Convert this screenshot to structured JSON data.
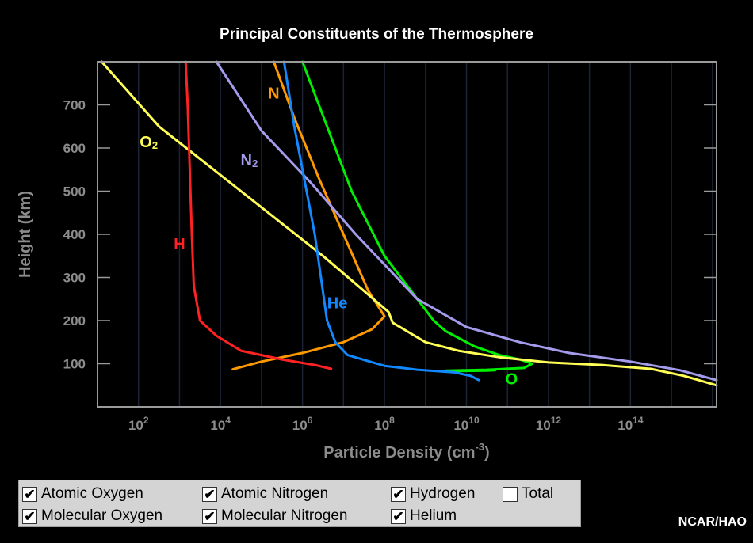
{
  "title": "Principal Constituents of the Thermosphere",
  "credit": "NCAR/HAO",
  "legend": [
    {
      "label": "Atomic Oxygen",
      "checked": true
    },
    {
      "label": "Atomic Nitrogen",
      "checked": true
    },
    {
      "label": "Hydrogen",
      "checked": true
    },
    {
      "label": "Total",
      "checked": false
    },
    {
      "label": "Molecular Oxygen",
      "checked": true
    },
    {
      "label": "Molecular Nitrogen",
      "checked": true
    },
    {
      "label": "Helium",
      "checked": true
    }
  ],
  "chart_data": {
    "type": "line",
    "title": "Principal Constituents of the Thermosphere",
    "xlabel": "Particle Density (cm-3)",
    "ylabel": "Height (km)",
    "x_scale": "log10",
    "xlim_log10": [
      1,
      16.1
    ],
    "ylim": [
      0,
      800
    ],
    "x_ticks": [
      {
        "base": "10",
        "exp": "2"
      },
      {
        "base": "10",
        "exp": "4"
      },
      {
        "base": "10",
        "exp": "6"
      },
      {
        "base": "10",
        "exp": "8"
      },
      {
        "base": "10",
        "exp": "10"
      },
      {
        "base": "10",
        "exp": "12"
      },
      {
        "base": "10",
        "exp": "14"
      }
    ],
    "y_ticks": [
      "100",
      "200",
      "300",
      "400",
      "500",
      "600",
      "700"
    ],
    "grid": "vertical lines",
    "series": [
      {
        "name": "O",
        "color": "#00ee00",
        "label": "O",
        "points": [
          [
            10.7,
            85
          ],
          [
            10.5,
            84
          ],
          [
            9.8,
            83
          ],
          [
            9.5,
            84
          ],
          [
            10.5,
            86
          ],
          [
            11.4,
            90
          ],
          [
            11.6,
            100
          ],
          [
            11.3,
            110
          ],
          [
            10.8,
            120
          ],
          [
            10.2,
            140
          ],
          [
            9.5,
            175
          ],
          [
            9.2,
            200
          ],
          [
            8,
            350
          ],
          [
            7.2,
            500
          ],
          [
            6.4,
            700
          ],
          [
            6.0,
            800
          ]
        ]
      },
      {
        "name": "N",
        "color": "#ff9900",
        "label": "N",
        "points": [
          [
            4.3,
            87
          ],
          [
            5,
            105
          ],
          [
            6,
            125
          ],
          [
            7,
            150
          ],
          [
            7.7,
            180
          ],
          [
            8.0,
            210
          ],
          [
            7.6,
            270
          ],
          [
            7,
            400
          ],
          [
            6.4,
            530
          ],
          [
            5.8,
            670
          ],
          [
            5.3,
            800
          ]
        ]
      },
      {
        "name": "O2",
        "color": "#ffff55",
        "label": "O2",
        "labelparts": {
          "base": "O",
          "sub": "2"
        },
        "points": [
          [
            16.1,
            50
          ],
          [
            15.3,
            72
          ],
          [
            14.5,
            88
          ],
          [
            13.3,
            97
          ],
          [
            12,
            103
          ],
          [
            10.8,
            115
          ],
          [
            9.8,
            130
          ],
          [
            9,
            150
          ],
          [
            8.2,
            195
          ],
          [
            8.1,
            220
          ],
          [
            6.5,
            350
          ],
          [
            4.5,
            500
          ],
          [
            2.5,
            650
          ],
          [
            1.1,
            800
          ]
        ]
      },
      {
        "name": "N2",
        "color": "#a49bec",
        "label": "N2",
        "labelparts": {
          "base": "N",
          "sub": "2"
        },
        "points": [
          [
            16.1,
            62
          ],
          [
            15.2,
            85
          ],
          [
            14,
            105
          ],
          [
            12.5,
            125
          ],
          [
            11.3,
            150
          ],
          [
            10,
            185
          ],
          [
            8.8,
            250
          ],
          [
            7.3,
            400
          ],
          [
            6.2,
            520
          ],
          [
            5,
            640
          ],
          [
            3.9,
            800
          ]
        ]
      },
      {
        "name": "H",
        "color": "#ff2222",
        "label": "H",
        "points": [
          [
            6.7,
            88
          ],
          [
            6.3,
            97
          ],
          [
            5.5,
            110
          ],
          [
            4.5,
            130
          ],
          [
            3.9,
            165
          ],
          [
            3.5,
            200
          ],
          [
            3.35,
            280
          ],
          [
            3.3,
            400
          ],
          [
            3.25,
            550
          ],
          [
            3.2,
            700
          ],
          [
            3.15,
            800
          ]
        ]
      },
      {
        "name": "He",
        "color": "#1188ff",
        "label": "He",
        "points": [
          [
            10.3,
            62
          ],
          [
            10.1,
            72
          ],
          [
            9.7,
            80
          ],
          [
            8.8,
            86
          ],
          [
            8,
            95
          ],
          [
            7.1,
            120
          ],
          [
            6.8,
            150
          ],
          [
            6.6,
            200
          ],
          [
            6.45,
            300
          ],
          [
            6.3,
            400
          ],
          [
            6.1,
            500
          ],
          [
            5.8,
            650
          ],
          [
            5.55,
            800
          ]
        ]
      }
    ]
  }
}
